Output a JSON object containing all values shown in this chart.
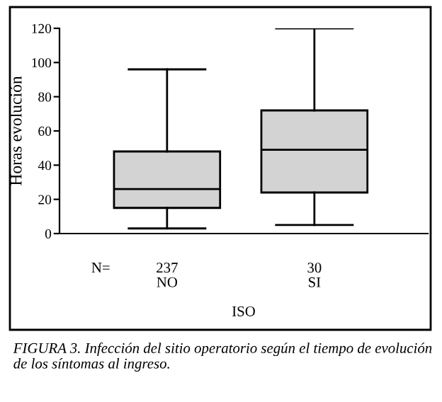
{
  "chart_data": {
    "type": "box",
    "categories": [
      "NO",
      "SI"
    ],
    "boxes": [
      {
        "low": 3,
        "q1": 15,
        "median": 26,
        "q3": 48,
        "high": 96
      },
      {
        "low": 5,
        "q1": 24,
        "median": 49,
        "q3": 72,
        "high": 120
      }
    ],
    "color": "#d3d3d3",
    "ylabel": "Horas evolución",
    "xlabel": "ISO",
    "ylim": [
      0,
      120
    ],
    "yticks": [
      0,
      20,
      40,
      60,
      80,
      100,
      120
    ],
    "grid": false,
    "annotations": [
      "N=",
      "237",
      "30",
      "FIGURA 3. Infección del sitio operatorio según el tiempo de evolución de los síntomas al ingreso."
    ]
  }
}
